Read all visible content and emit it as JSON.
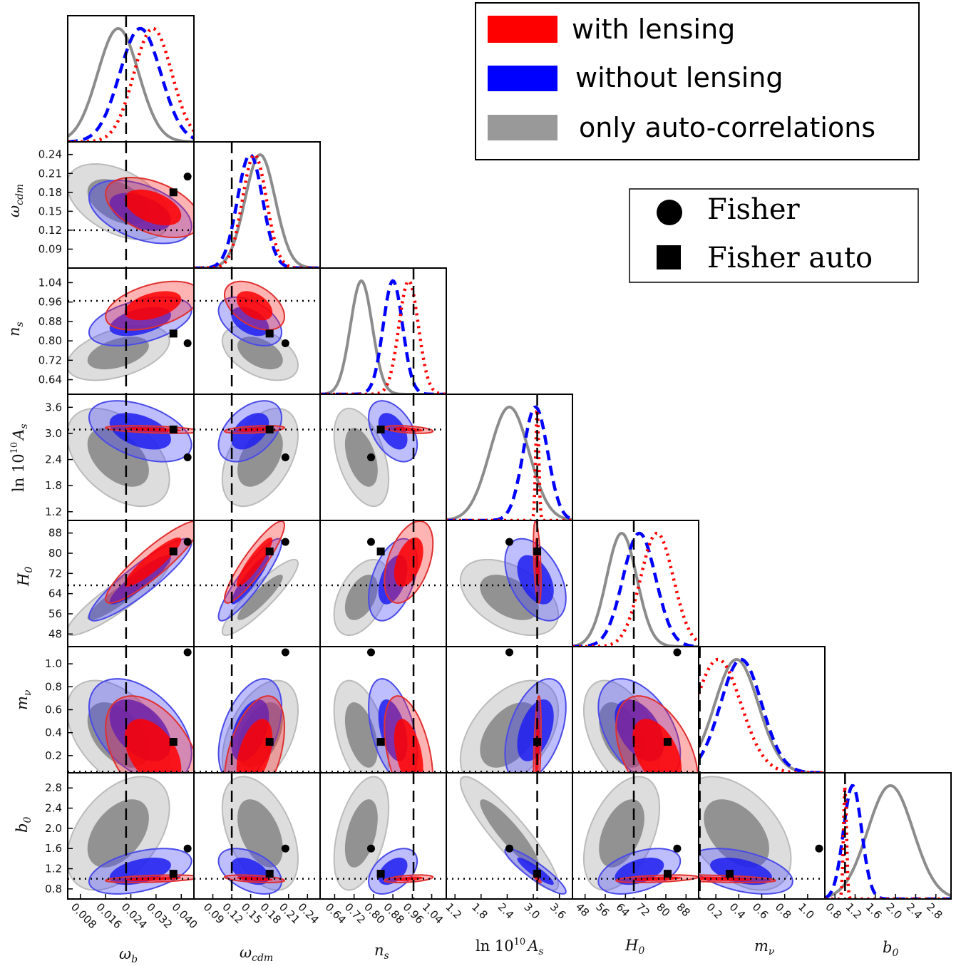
{
  "chart_data": {
    "type": "corner",
    "parameters": [
      {
        "key": "wb",
        "label": "ω_b",
        "lo": 0.004,
        "hi": 0.044,
        "fid": 0.0225,
        "ticks": [
          "0.008",
          "0.016",
          "0.024",
          "0.032",
          "0.040"
        ]
      },
      {
        "key": "wcdm",
        "label": "ω_cdm",
        "lo": 0.06,
        "hi": 0.26,
        "fid": 0.12,
        "ticks": [
          "0.09",
          "0.12",
          "0.15",
          "0.18",
          "0.21",
          "0.24"
        ]
      },
      {
        "key": "ns",
        "label": "n_s",
        "lo": 0.58,
        "hi": 1.1,
        "fid": 0.965,
        "ticks": [
          "0.64",
          "0.72",
          "0.80",
          "0.88",
          "0.96",
          "1.04"
        ]
      },
      {
        "key": "lnAs",
        "label": "ln 10^10 A_s",
        "lo": 1.0,
        "hi": 3.9,
        "fid": 3.09,
        "ticks": [
          "1.2",
          "1.8",
          "2.4",
          "3.0",
          "3.6"
        ]
      },
      {
        "key": "H0",
        "label": "H_0",
        "lo": 43,
        "hi": 93,
        "fid": 67.3,
        "ticks": [
          "48",
          "56",
          "64",
          "72",
          "80",
          "88"
        ]
      },
      {
        "key": "mnu",
        "label": "m_ν",
        "lo": 0.05,
        "hi": 1.15,
        "fid": 0.06,
        "ticks": [
          "0.2",
          "0.4",
          "0.6",
          "0.8",
          "1.0"
        ]
      },
      {
        "key": "b0",
        "label": "b_0",
        "lo": 0.6,
        "hi": 3.1,
        "fid": 1.0,
        "ticks": [
          "0.8",
          "1.2",
          "1.6",
          "2.0",
          "2.4",
          "2.8"
        ]
      }
    ],
    "series": [
      {
        "name": "with lensing",
        "color": "#ff0000",
        "line": "dotted",
        "mean": [
          0.031,
          0.156,
          0.945,
          3.09,
          76.5,
          0.22,
          1.0
        ],
        "sigma": [
          0.006,
          0.019,
          0.04,
          0.035,
          6.5,
          0.2,
          0.03
        ]
      },
      {
        "name": "without lensing",
        "color": "#0000ff",
        "line": "dashed",
        "mean": [
          0.027,
          0.149,
          0.88,
          3.05,
          69.5,
          0.42,
          1.15
        ],
        "sigma": [
          0.0065,
          0.02,
          0.04,
          0.28,
          6.5,
          0.18,
          0.18
        ]
      },
      {
        "name": "only auto-correlations",
        "color": "#888888",
        "line": "solid",
        "mean": [
          0.02,
          0.165,
          0.75,
          2.45,
          62.5,
          0.38,
          1.9
        ],
        "sigma": [
          0.0065,
          0.024,
          0.045,
          0.45,
          6.0,
          0.19,
          0.45
        ]
      }
    ],
    "fisher": [
      0.042,
      0.205,
      0.79,
      2.45,
      84.5,
      1.1,
      1.6
    ],
    "fisher_auto": [
      0.0375,
      0.18,
      0.83,
      3.09,
      80.7,
      0.32,
      1.1
    ],
    "legend": {
      "location": "top-right",
      "entries": [
        "with lensing",
        "without lensing",
        "only auto-correlations"
      ]
    },
    "marker_legend": {
      "location": "upper-right",
      "entries": [
        {
          "marker": "circle",
          "label": "Fisher"
        },
        {
          "marker": "square",
          "label": "Fisher auto"
        }
      ]
    }
  },
  "labels": {
    "wb": "ω",
    "wb_sub": "b",
    "wcdm": "ω",
    "wcdm_sub": "cdm",
    "ns": "n",
    "ns_sub": "s",
    "lnAs_pre": "ln 10",
    "lnAs_sup": "10",
    "lnAs_A": "A",
    "lnAs_sub": "s",
    "H0": "H",
    "H0_sub": "0",
    "mnu": "m",
    "mnu_sub": "ν",
    "b0": "b",
    "b0_sub": "0"
  }
}
